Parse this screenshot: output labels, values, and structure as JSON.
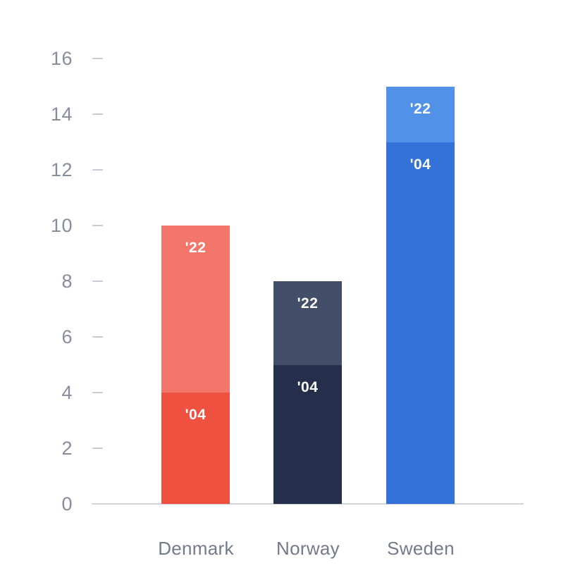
{
  "chart_data": {
    "type": "bar",
    "stacked": true,
    "title": "",
    "xlabel": "",
    "ylabel": "",
    "categories": [
      "Denmark",
      "Norway",
      "Sweden"
    ],
    "series": [
      {
        "name": "'04",
        "values": [
          4,
          5,
          13
        ],
        "colors": [
          "#ef5140",
          "#252f4c",
          "#3272d9"
        ]
      },
      {
        "name": "'22",
        "values": [
          6,
          3,
          2
        ],
        "colors": [
          "#f3766b",
          "#434e68",
          "#5291e8"
        ]
      }
    ],
    "totals": [
      10,
      8,
      15
    ],
    "segment_label_color": "#ffffff",
    "yticks": [
      0,
      2,
      4,
      6,
      8,
      10,
      12,
      14,
      16
    ],
    "ylim": [
      0,
      16
    ],
    "grid": false,
    "legend_position": "none-labels-inside-segments"
  },
  "colors": {
    "background": "#ffffff",
    "axis_line": "#d2d5da",
    "tick": "#c6cad2",
    "y_label": "#868d9c",
    "x_label": "#737a8a"
  }
}
